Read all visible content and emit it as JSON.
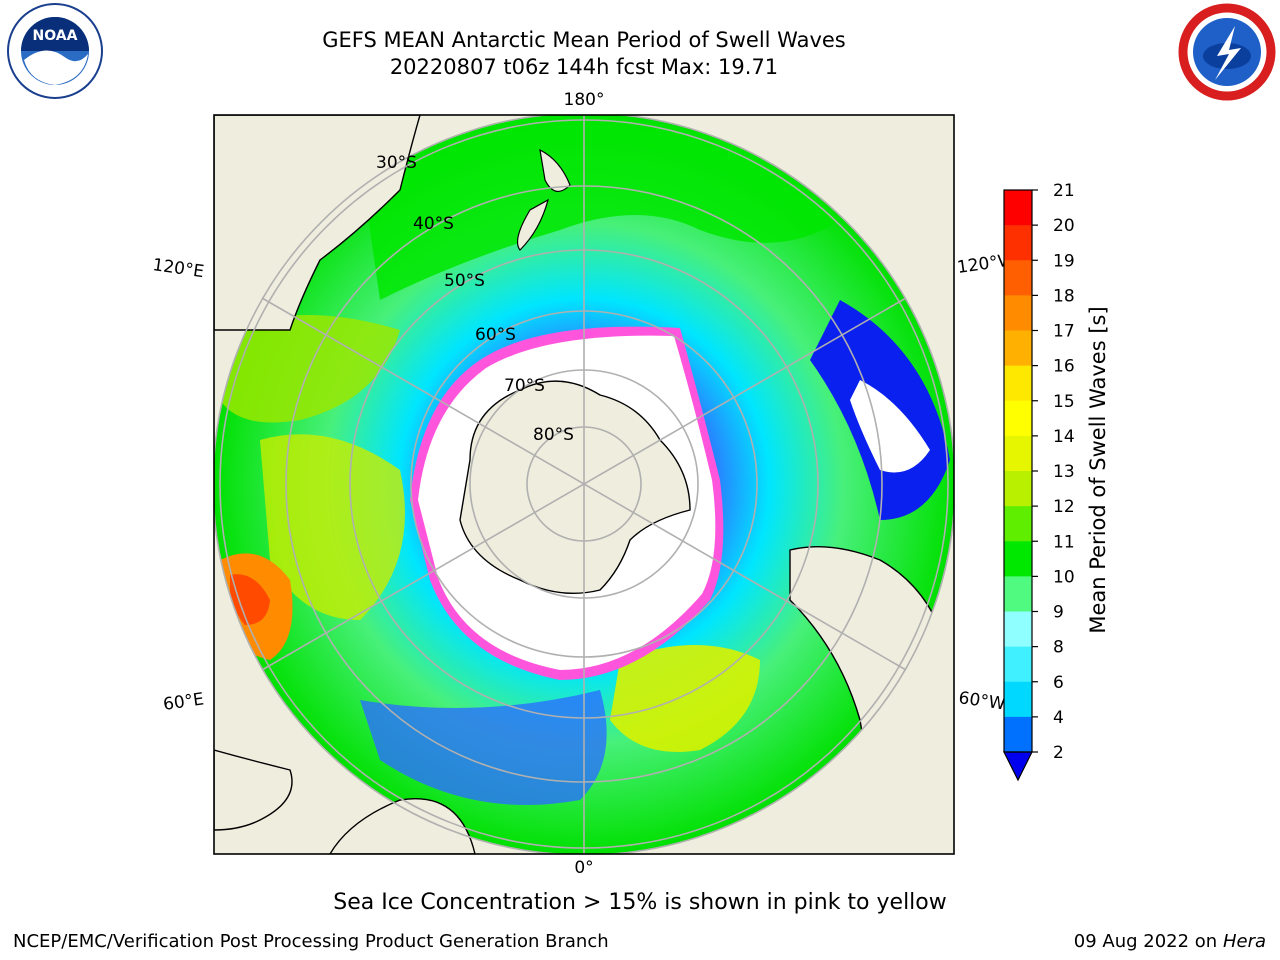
{
  "title": {
    "line1": "GEFS MEAN Antarctic Mean Period of Swell Waves",
    "line2": "20220807 t06z 144h fcst   Max: 19.71"
  },
  "logos": {
    "left_icon": "noaa-logo",
    "left_text": "NOAA",
    "right_icon": "national-weather-service-logo"
  },
  "map": {
    "projection": "south-polar-stereographic",
    "longitude_labels": {
      "top": "180°",
      "bottom": "0°",
      "upper_left": "120°E",
      "upper_right": "120°W",
      "lower_left": "60°E",
      "lower_right": "60°W"
    },
    "latitude_labels": [
      "30°S",
      "40°S",
      "50°S",
      "60°S",
      "70°S",
      "80°S"
    ]
  },
  "colorbar": {
    "label": "Mean Period of Swell Waves [s]",
    "ticks": [
      "2",
      "4",
      "6",
      "8",
      "9",
      "10",
      "11",
      "12",
      "13",
      "14",
      "15",
      "16",
      "17",
      "18",
      "19",
      "20",
      "21"
    ],
    "colors": [
      "#0000ee",
      "#0070ff",
      "#00d8ff",
      "#40f0ff",
      "#90ffff",
      "#50fa80",
      "#00e800",
      "#60ee00",
      "#b8f000",
      "#e6f600",
      "#ffff00",
      "#ffe800",
      "#ffb000",
      "#ff8c00",
      "#ff5f00",
      "#ff3000",
      "#ff0000"
    ],
    "extend": "min"
  },
  "caption": "Sea Ice Concentration > 15% is shown in pink to yellow",
  "footer": {
    "left": "NCEP/EMC/Verification Post Processing Product Generation Branch",
    "right_prefix": "09 Aug 2022 on",
    "right_machine": "Hera"
  }
}
